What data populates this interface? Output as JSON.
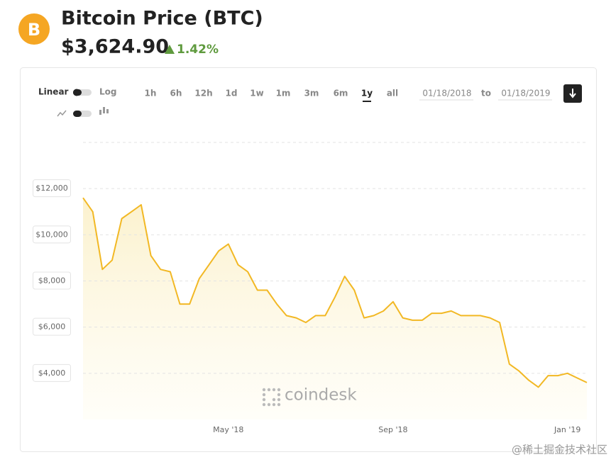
{
  "header": {
    "logo": "B",
    "title": "Bitcoin Price (BTC)",
    "price": "$3,624.90",
    "change": "1.42%"
  },
  "controls": {
    "linear": "Linear",
    "log": "Log",
    "ranges": [
      "1h",
      "6h",
      "12h",
      "1d",
      "1w",
      "1m",
      "3m",
      "6m",
      "1y",
      "all"
    ],
    "selected_range_index": 8,
    "date_from": "01/18/2018",
    "date_sep": "to",
    "date_to": "01/18/2019"
  },
  "watermark": "coindesk",
  "footer": "@稀土掘金技术社区",
  "chart_data": {
    "type": "area",
    "categories": [
      null,
      null,
      null,
      null,
      null,
      null,
      null,
      null,
      null,
      null,
      null,
      null,
      null,
      null,
      null,
      "May '18",
      null,
      null,
      null,
      null,
      null,
      null,
      null,
      null,
      null,
      null,
      null,
      null,
      null,
      null,
      null,
      null,
      "Sep '18",
      null,
      null,
      null,
      null,
      null,
      null,
      null,
      null,
      null,
      null,
      null,
      null,
      null,
      null,
      null,
      null,
      null,
      "Jan '19",
      null,
      null
    ],
    "series": [
      {
        "name": "BTC",
        "color": "#f2b824",
        "values": [
          11600,
          11000,
          8500,
          8900,
          10700,
          11000,
          11300,
          9100,
          8500,
          8400,
          7000,
          7000,
          8100,
          8700,
          9300,
          9600,
          8700,
          8400,
          7600,
          7600,
          7000,
          6500,
          6400,
          6200,
          6500,
          6500,
          7300,
          8200,
          7600,
          6400,
          6500,
          6700,
          7100,
          6400,
          6300,
          6300,
          6600,
          6600,
          6700,
          6500,
          6500,
          6500,
          6400,
          6200,
          4400,
          4100,
          3700,
          3400,
          3900,
          3900,
          4000,
          3800,
          3600
        ]
      }
    ],
    "ylim": [
      2000,
      14000
    ],
    "yticks": [
      {
        "value": 4000,
        "label": "$4,000"
      },
      {
        "value": 6000,
        "label": "$6,000"
      },
      {
        "value": 8000,
        "label": "$8,000"
      },
      {
        "value": 10000,
        "label": "$10,000"
      },
      {
        "value": 12000,
        "label": "$12,000"
      }
    ],
    "grid": true
  }
}
